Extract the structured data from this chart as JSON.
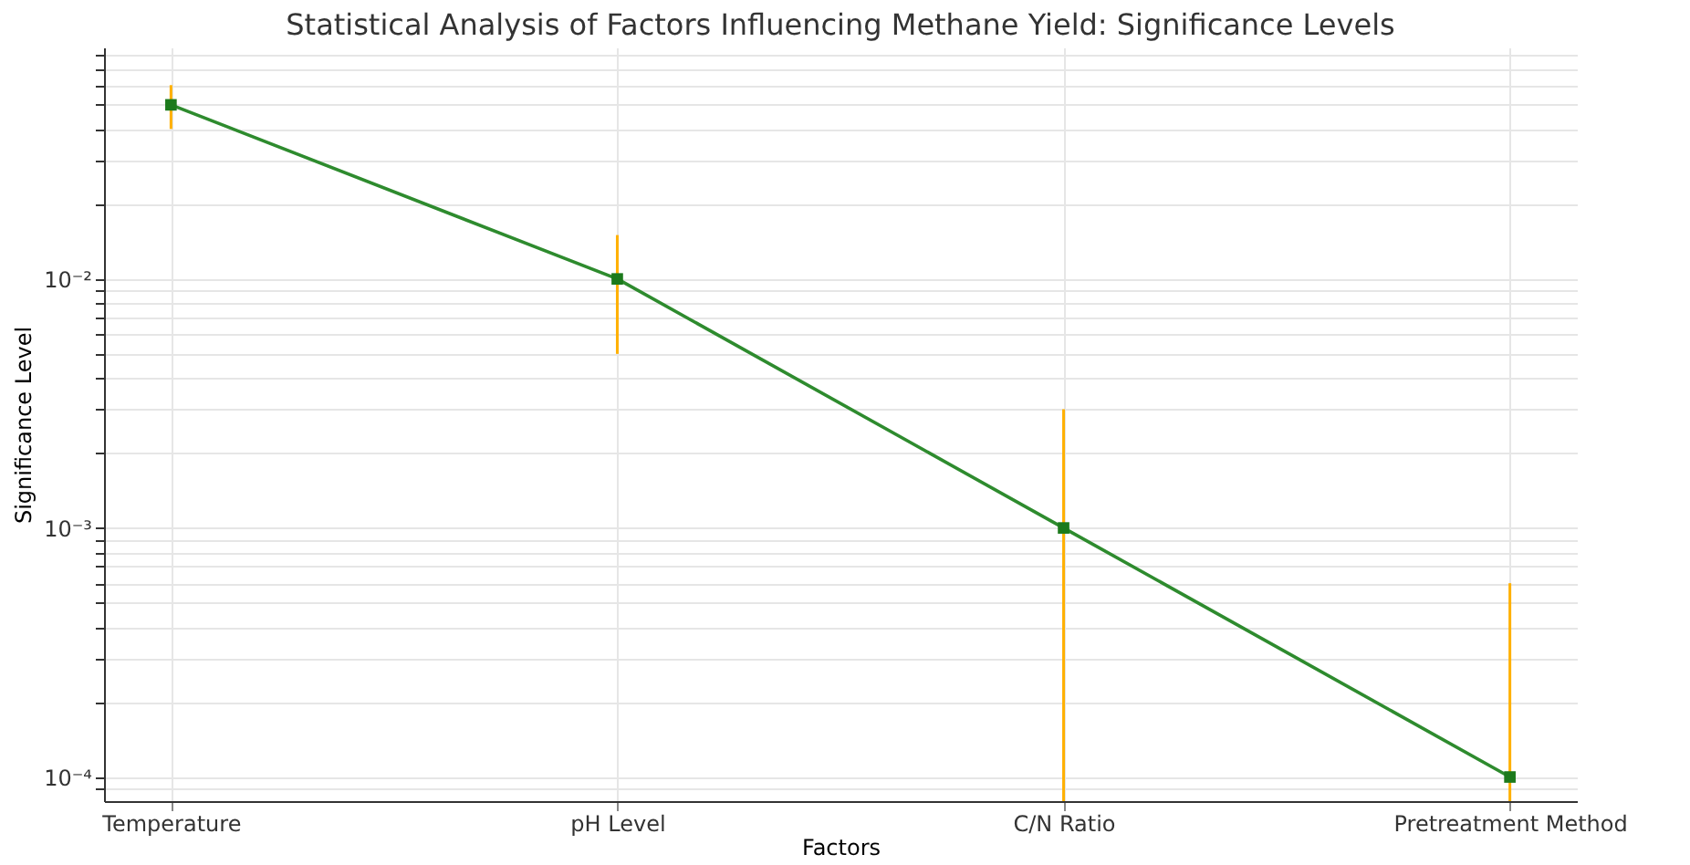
{
  "chart_data": {
    "type": "line",
    "title": "Statistical Analysis of Factors Influencing Methane Yield: Significance Levels",
    "xlabel": "Factors",
    "ylabel": "Significance Level",
    "categories": [
      "Temperature",
      "pH Level",
      "C/N Ratio",
      "Pretreatment Method"
    ],
    "series": [
      {
        "color": "#2e8b2e",
        "values": [
          0.05,
          0.01,
          0.001,
          0.0001
        ],
        "errors": [
          0.01,
          0.005,
          [
            8e-05,
            0.003
          ],
          [
            8e-05,
            0.0006
          ]
        ]
      }
    ],
    "log": true,
    "ylim": [
      8e-05,
      0.085
    ],
    "yticks": [
      {
        "value": 9e-05,
        "label": null
      },
      {
        "value": 0.0001,
        "label": "10⁻⁴"
      },
      {
        "value": 0.0002,
        "label": null
      },
      {
        "value": 0.0003,
        "label": null
      },
      {
        "value": 0.0004,
        "label": null
      },
      {
        "value": 0.0005,
        "label": null
      },
      {
        "value": 0.0006,
        "label": null
      },
      {
        "value": 0.0007,
        "label": null
      },
      {
        "value": 0.0008,
        "label": null
      },
      {
        "value": 0.0009,
        "label": null
      },
      {
        "value": 0.001,
        "label": "10⁻³"
      },
      {
        "value": 0.002,
        "label": null
      },
      {
        "value": 0.003,
        "label": null
      },
      {
        "value": 0.004,
        "label": null
      },
      {
        "value": 0.005,
        "label": null
      },
      {
        "value": 0.006,
        "label": null
      },
      {
        "value": 0.007,
        "label": null
      },
      {
        "value": 0.008,
        "label": null
      },
      {
        "value": 0.009,
        "label": null
      },
      {
        "value": 0.01,
        "label": "10⁻²"
      },
      {
        "value": 0.02,
        "label": null
      },
      {
        "value": 0.03,
        "label": null
      },
      {
        "value": 0.04,
        "label": null
      },
      {
        "value": 0.05,
        "label": null
      },
      {
        "value": 0.06,
        "label": null
      },
      {
        "value": 0.07,
        "label": null
      },
      {
        "value": 0.08,
        "label": null
      }
    ],
    "grid": true,
    "marker": "square",
    "line_style": "solid"
  }
}
